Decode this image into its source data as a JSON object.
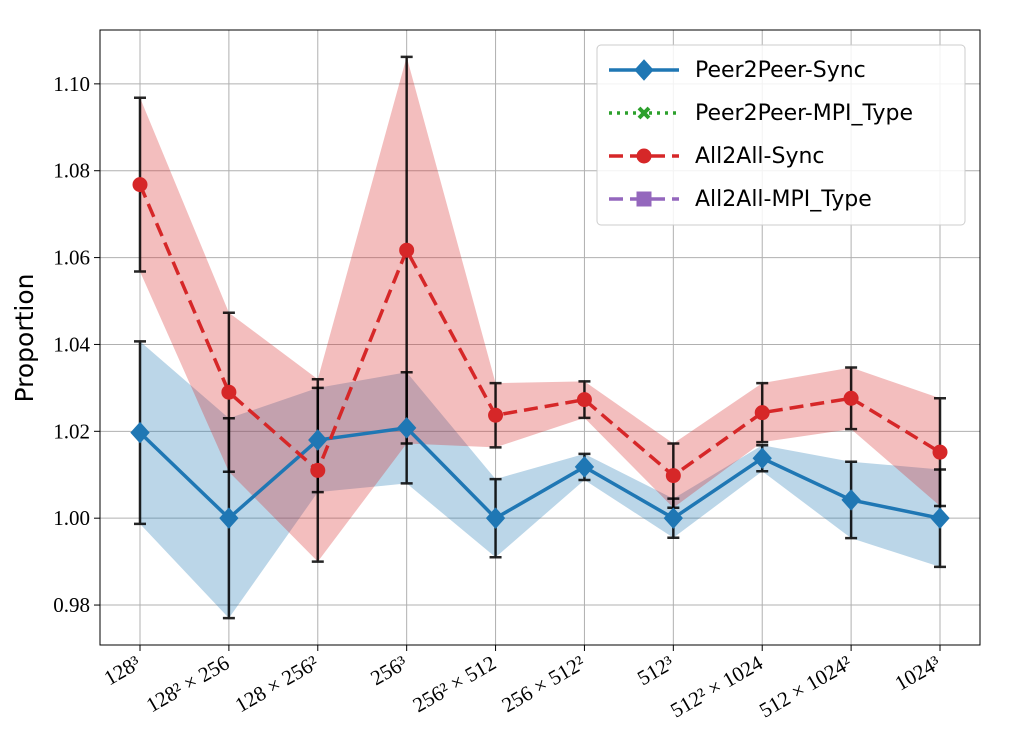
{
  "chart_data": {
    "type": "line",
    "ylabel": "Proportion",
    "categories": [
      "128³",
      "128² × 256",
      "128 × 256²",
      "256³",
      "256² × 512",
      "256 × 512²",
      "512³",
      "512² × 1024",
      "512 × 1024²",
      "1024³"
    ],
    "ylim": [
      0.9708,
      1.1124
    ],
    "yticks": [
      0.98,
      {
        "value": 1.0,
        "label": "1.00"
      },
      1.02,
      1.04,
      1.06,
      1.08,
      {
        "value": 1.1,
        "label": "1.10"
      }
    ],
    "grid": true,
    "legend": "upper right",
    "series": [
      {
        "name": "Peer2Peer-Sync",
        "color": "#1f77b4",
        "linestyle": "solid",
        "marker": "diamond",
        "values": [
          1.0197,
          1.0,
          1.018,
          1.0208,
          1.0,
          1.0118,
          1.0,
          1.0138,
          1.0042,
          1.0
        ],
        "errors": [
          0.021,
          0.023,
          0.012,
          0.0128,
          0.009,
          0.003,
          0.0045,
          0.003,
          0.0088,
          0.0112
        ]
      },
      {
        "name": "Peer2Peer-MPI_Type",
        "color": "#2ca02c",
        "linestyle": "dotted",
        "marker": "x",
        "values": [
          null,
          null,
          null,
          null,
          null,
          null,
          null,
          null,
          null,
          null
        ]
      },
      {
        "name": "All2All-Sync",
        "color": "#d62728",
        "linestyle": "dashed",
        "marker": "circle",
        "values": [
          1.0768,
          1.029,
          1.011,
          1.0617,
          1.0237,
          1.0273,
          1.0098,
          1.0243,
          1.0276,
          1.0152
        ],
        "errors": [
          0.02,
          0.0183,
          0.021,
          0.0445,
          0.0074,
          0.0042,
          0.0074,
          0.0068,
          0.0071,
          0.0124
        ]
      },
      {
        "name": "All2All-MPI_Type",
        "color": "#9467bd",
        "linestyle": "dashed",
        "marker": "square",
        "values": [
          null,
          null,
          null,
          null,
          null,
          null,
          null,
          null,
          null,
          null
        ]
      }
    ]
  }
}
